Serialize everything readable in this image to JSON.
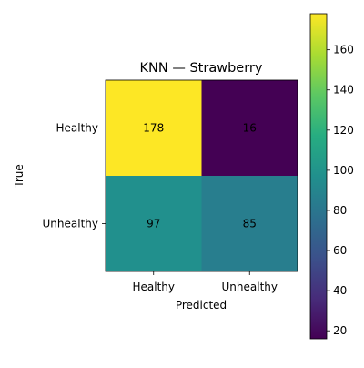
{
  "chart_data": {
    "type": "heatmap",
    "title": "KNN — Strawberry",
    "xlabel": "Predicted",
    "ylabel": "True",
    "x_categories": [
      "Healthy",
      "Unhealthy"
    ],
    "y_categories": [
      "Healthy",
      "Unhealthy"
    ],
    "values": [
      [
        178,
        16
      ],
      [
        97,
        85
      ]
    ],
    "colormap": "viridis",
    "colorbar": {
      "range": [
        16,
        178
      ],
      "ticks": [
        20,
        40,
        60,
        80,
        100,
        120,
        140,
        160
      ]
    },
    "grid": false
  }
}
